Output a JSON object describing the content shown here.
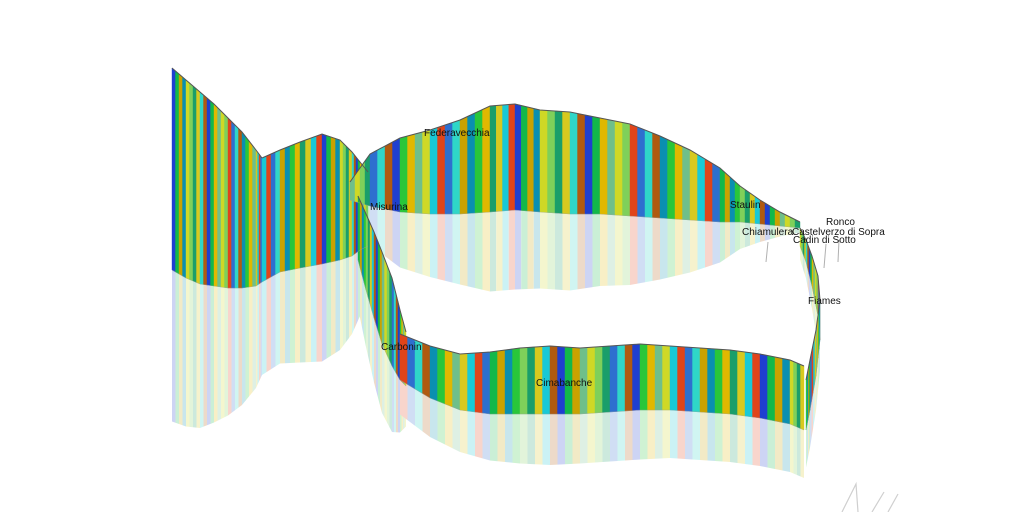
{
  "places": [
    {
      "key": "federavecchia",
      "label": "Federavecchia"
    },
    {
      "key": "misurina",
      "label": "Misurina"
    },
    {
      "key": "staulin",
      "label": "Staulin"
    },
    {
      "key": "chiamulera",
      "label": "Chiamulera"
    },
    {
      "key": "castelverzo",
      "label": "Castelverzo di Sopra"
    },
    {
      "key": "ronco",
      "label": "Ronco"
    },
    {
      "key": "cadin",
      "label": "Cadin di Sotto"
    },
    {
      "key": "fiames",
      "label": "Fiames"
    },
    {
      "key": "carbonin",
      "label": "Carbonin"
    },
    {
      "key": "cimabanche",
      "label": "Cimabanche"
    }
  ],
  "palette": [
    "#1f3fd0",
    "#2e6fcf",
    "#d7c91f",
    "#cfd826",
    "#29c63a",
    "#12b84a",
    "#2fd6c8",
    "#18c9d6",
    "#7fd05a",
    "#e0b800",
    "#c9a200",
    "#b05a10",
    "#e0441a",
    "#1a9e6a",
    "#6fbf8a",
    "#0a8fb0"
  ]
}
